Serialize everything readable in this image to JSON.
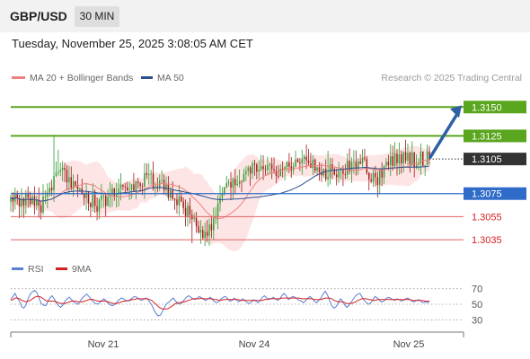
{
  "header": {
    "symbol": "GBP/USD",
    "timeframe": "30 MIN"
  },
  "datetime": "Tuesday, November 25, 2025 3:08:05 AM CET",
  "research": "Research © 2025 Trading Central",
  "legend_main": [
    {
      "label": "MA 20 + Bollinger Bands",
      "color": "#f08080"
    },
    {
      "label": "MA 50",
      "color": "#2b4f8f"
    }
  ],
  "legend_rsi": [
    {
      "label": "RSI",
      "color": "#5b7fd4"
    },
    {
      "label": "9MA",
      "color": "#d62020"
    }
  ],
  "colors": {
    "bull": "#2e9b2e",
    "bear": "#a01818",
    "resistance": "#5aa61e",
    "pivot": "#2f6bc8",
    "support": "#e06060",
    "current": "#333333",
    "bands": "#fde0e0"
  },
  "chart_data": [
    {
      "type": "candlestick",
      "ylim": [
        1.3025,
        1.3165
      ],
      "x_ticks": [
        "Nov 21",
        "Nov 24",
        "Nov 25"
      ],
      "levels": [
        {
          "label": "1.3150",
          "value": 1.315,
          "kind": "resistance"
        },
        {
          "label": "1.3125",
          "value": 1.3125,
          "kind": "resistance"
        },
        {
          "label": "1.3105",
          "value": 1.3105,
          "kind": "current"
        },
        {
          "label": "1.3075",
          "value": 1.3075,
          "kind": "pivot"
        },
        {
          "label": "1.3055",
          "value": 1.3055,
          "kind": "support"
        },
        {
          "label": "1.3035",
          "value": 1.3035,
          "kind": "support"
        }
      ]
    },
    {
      "type": "line",
      "ylim": [
        20,
        80
      ],
      "y_ticks": [
        "70",
        "50",
        "30"
      ],
      "series": [
        {
          "name": "RSI",
          "values": [
            56,
            60,
            64,
            58,
            54,
            47,
            45,
            49,
            57,
            63,
            66,
            68,
            65,
            58,
            51,
            49,
            48,
            53,
            58,
            61,
            57,
            52,
            48,
            46,
            49,
            54,
            57,
            59,
            56,
            53,
            51,
            50,
            54,
            58,
            61,
            63,
            60,
            57,
            53,
            51,
            50,
            52,
            55,
            57,
            54,
            51,
            49,
            48,
            50,
            53,
            56,
            58,
            57,
            55,
            54,
            56,
            58,
            60,
            59,
            57,
            55,
            56,
            58,
            57,
            53,
            49,
            43,
            38,
            35,
            36,
            41,
            47,
            51,
            53,
            56,
            58,
            54,
            51,
            50,
            52,
            56,
            59,
            61,
            59,
            57,
            56,
            58,
            60,
            58,
            56,
            55,
            57,
            59,
            56,
            53,
            52,
            54,
            57,
            59,
            60,
            57,
            54,
            55,
            58,
            56,
            53,
            55,
            57,
            55,
            52,
            51,
            53,
            56,
            54,
            52,
            55,
            59,
            61,
            58,
            56,
            57,
            59,
            57,
            55,
            57,
            61,
            64,
            61,
            56,
            58,
            60,
            59,
            57,
            55,
            54,
            52,
            55,
            58,
            60,
            57,
            54,
            52,
            55,
            58,
            63,
            67,
            62,
            55,
            48,
            45,
            47,
            52,
            57,
            54,
            49,
            46,
            49,
            53,
            57,
            61,
            63,
            64,
            59,
            55,
            52,
            50,
            52,
            56,
            60,
            58,
            55,
            53,
            54,
            57,
            59,
            58,
            56,
            55,
            57,
            56,
            54,
            55,
            57,
            58,
            56,
            54,
            53,
            55,
            56,
            54,
            52,
            53,
            52,
            53
          ]
        },
        {
          "name": "9MA",
          "values": [
            55,
            56,
            58,
            58,
            57,
            55,
            54,
            53,
            54,
            55,
            57,
            59,
            60,
            60,
            59,
            57,
            55,
            54,
            54,
            54,
            54,
            53,
            52,
            51,
            51,
            51,
            52,
            53,
            54,
            54,
            54,
            53,
            53,
            53,
            54,
            55,
            56,
            56,
            56,
            55,
            54,
            54,
            54,
            54,
            54,
            53,
            52,
            51,
            51,
            51,
            52,
            53,
            54,
            54,
            55,
            55,
            56,
            56,
            57,
            57,
            57,
            57,
            57,
            57,
            56,
            55,
            52,
            50,
            47,
            45,
            44,
            44,
            44,
            45,
            47,
            49,
            51,
            52,
            52,
            53,
            53,
            54,
            55,
            56,
            57,
            57,
            57,
            57,
            58,
            57,
            57,
            57,
            57,
            57,
            56,
            56,
            55,
            55,
            56,
            56,
            56,
            56,
            56,
            56,
            56,
            56,
            55,
            55,
            55,
            55,
            55,
            55,
            55,
            55,
            55,
            55,
            55,
            56,
            56,
            57,
            57,
            57,
            57,
            57,
            57,
            58,
            58,
            58,
            58,
            58,
            58,
            58,
            58,
            58,
            57,
            57,
            57,
            57,
            57,
            57,
            56,
            56,
            56,
            56,
            57,
            58,
            58,
            58,
            57,
            55,
            54,
            53,
            53,
            53,
            52,
            51,
            51,
            51,
            52,
            53,
            55,
            56,
            57,
            57,
            57,
            56,
            56,
            55,
            55,
            56,
            56,
            56,
            56,
            56,
            56,
            56,
            56,
            56,
            56,
            56,
            56,
            56,
            56,
            56,
            56,
            55,
            55,
            55,
            55,
            55,
            55,
            54,
            54,
            54
          ]
        }
      ]
    }
  ]
}
